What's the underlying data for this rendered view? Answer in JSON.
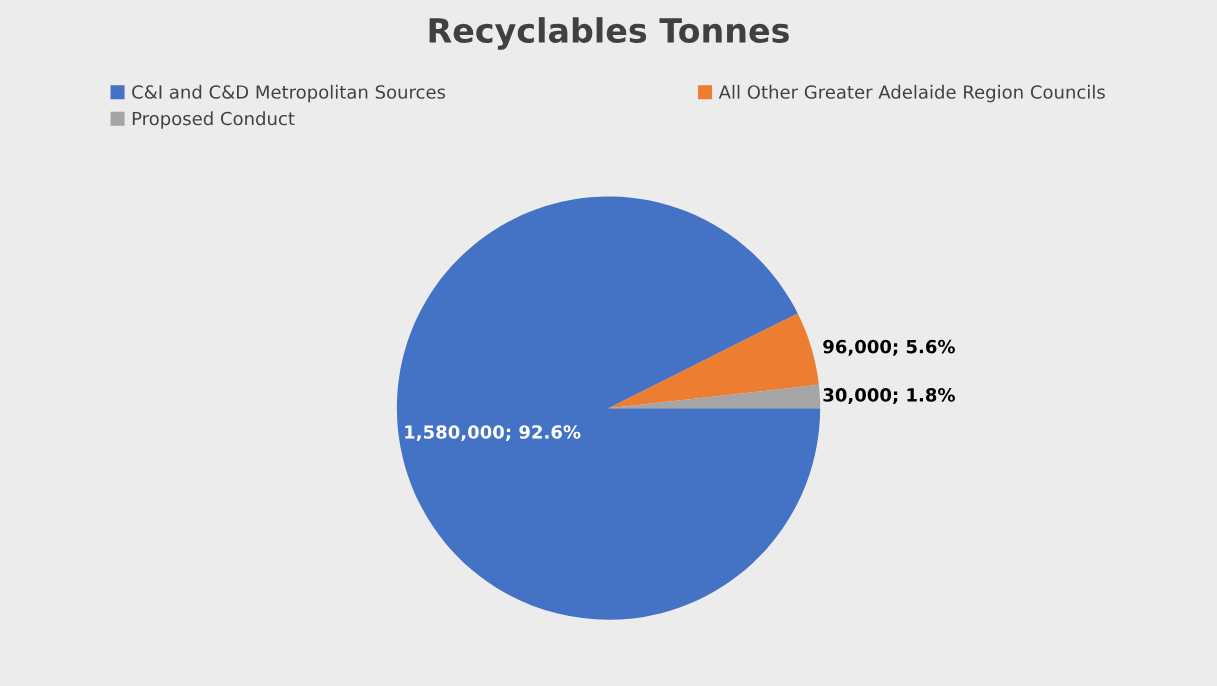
{
  "chart_data": {
    "type": "pie",
    "title": "Recyclables Tonnes",
    "categories": [
      "C&I and C&D Metropolitan Sources",
      "All Other Greater Adelaide Region Councils",
      "Proposed Conduct"
    ],
    "values": [
      1580000,
      96000,
      30000
    ],
    "colors": [
      "#4472c4",
      "#ed7d31",
      "#a5a5a5"
    ],
    "value_labels": [
      "1,580,000; 92.6%",
      "96,000; 5.6%",
      "30,000; 1.8%"
    ],
    "legend": "top"
  }
}
